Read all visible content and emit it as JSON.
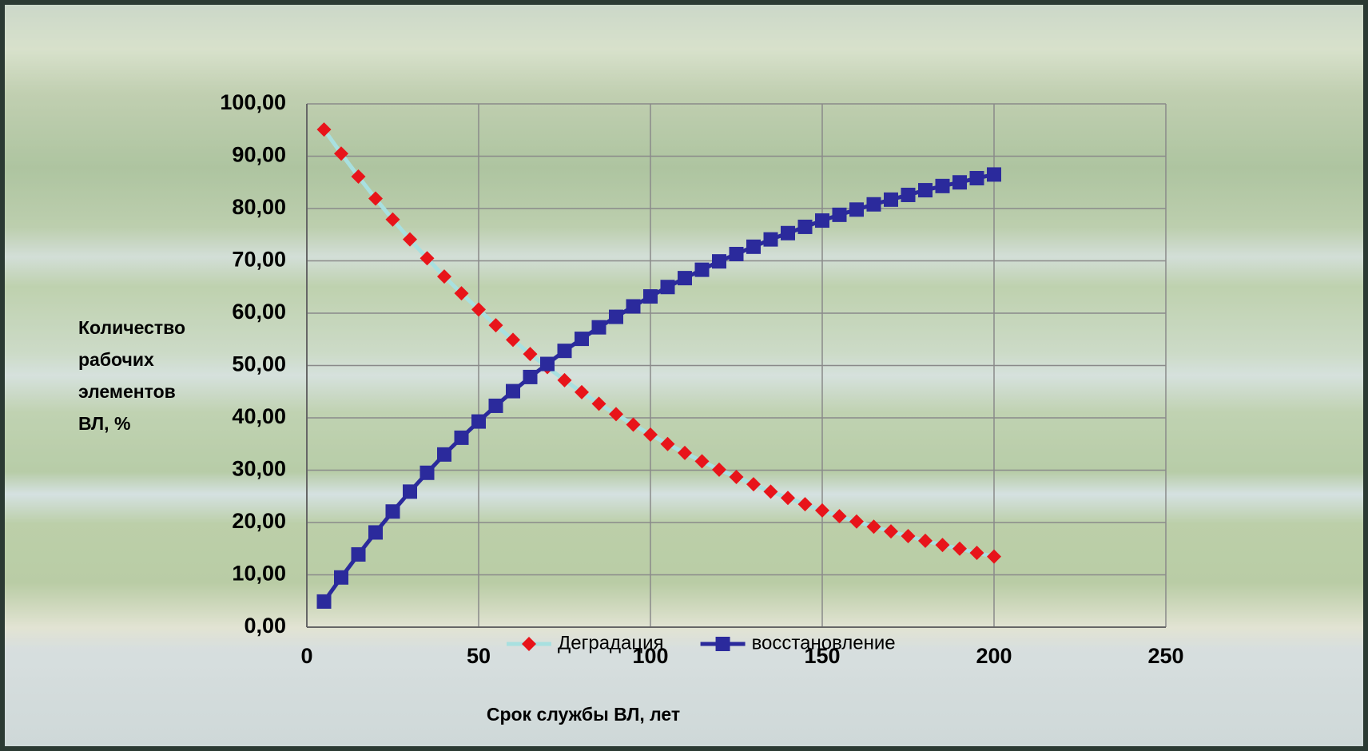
{
  "chart_data": {
    "type": "line",
    "xlabel": "Срок службы ВЛ, лет",
    "ylabel": "Количество рабочих элементов ВЛ, %",
    "x": [
      5,
      10,
      15,
      20,
      25,
      30,
      35,
      40,
      45,
      50,
      55,
      60,
      65,
      70,
      75,
      80,
      85,
      90,
      95,
      100,
      105,
      110,
      115,
      120,
      125,
      130,
      135,
      140,
      145,
      150,
      155,
      160,
      165,
      170,
      175,
      180,
      185,
      190,
      195,
      200
    ],
    "series": [
      {
        "name": "Деградация",
        "color": "#e8141a",
        "line_color": "#a8e0e0",
        "marker": "diamond",
        "values": [
          95.1,
          90.5,
          86.1,
          81.9,
          77.9,
          74.1,
          70.5,
          67.0,
          63.8,
          60.7,
          57.7,
          54.9,
          52.2,
          49.7,
          47.2,
          44.9,
          42.7,
          40.7,
          38.7,
          36.8,
          35.0,
          33.3,
          31.7,
          30.1,
          28.7,
          27.3,
          25.9,
          24.7,
          23.5,
          22.3,
          21.2,
          20.2,
          19.2,
          18.3,
          17.4,
          16.5,
          15.7,
          15.0,
          14.2,
          13.5
        ]
      },
      {
        "name": "восстановление",
        "color": "#2b2a9c",
        "line_color": "#2b2a9c",
        "marker": "square",
        "values": [
          4.9,
          9.5,
          13.9,
          18.1,
          22.1,
          25.9,
          29.5,
          33.0,
          36.2,
          39.3,
          42.3,
          45.1,
          47.8,
          50.3,
          52.8,
          55.1,
          57.3,
          59.3,
          61.3,
          63.2,
          65.0,
          66.7,
          68.3,
          69.9,
          71.3,
          72.7,
          74.1,
          75.3,
          76.5,
          77.7,
          78.8,
          79.8,
          80.8,
          81.7,
          82.6,
          83.5,
          84.3,
          85.0,
          85.8,
          86.5
        ]
      }
    ],
    "xlim": [
      0,
      250
    ],
    "xticks": [
      0,
      50,
      100,
      150,
      200,
      250
    ],
    "ylim": [
      0,
      100
    ],
    "yticks": [
      {
        "value": 0,
        "label": "0,00"
      },
      {
        "value": 10,
        "label": "10,00"
      },
      {
        "value": 20,
        "label": "20,00"
      },
      {
        "value": 30,
        "label": "30,00"
      },
      {
        "value": 40,
        "label": "40,00"
      },
      {
        "value": 50,
        "label": "50,00"
      },
      {
        "value": 60,
        "label": "60,00"
      },
      {
        "value": 70,
        "label": "70,00"
      },
      {
        "value": 80,
        "label": "80,00"
      },
      {
        "value": 90,
        "label": "90,00"
      },
      {
        "value": 100,
        "label": "100,00"
      }
    ],
    "grid": true,
    "legend": "bottom"
  }
}
